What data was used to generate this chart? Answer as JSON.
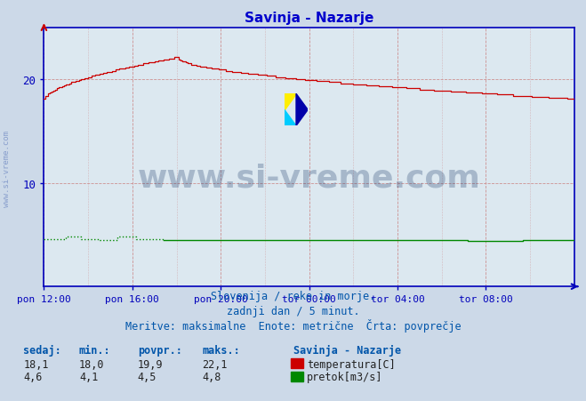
{
  "title": "Savinja - Nazarje",
  "title_color": "#0000cc",
  "bg_color": "#ccd9e8",
  "plot_bg_color": "#dce8f0",
  "axis_color": "#0000bb",
  "tick_color": "#0000bb",
  "ylim": [
    0,
    25.0
  ],
  "yticks": [
    10,
    20
  ],
  "xlabel_labels": [
    "pon 12:00",
    "pon 16:00",
    "pon 20:00",
    "tor 00:00",
    "tor 04:00",
    "tor 08:00"
  ],
  "xtick_positions": [
    0,
    48,
    96,
    144,
    192,
    240
  ],
  "n_points": 289,
  "temp_color": "#cc0000",
  "flow_color": "#008800",
  "watermark_text": "www.si-vreme.com",
  "watermark_color": "#1a3a6a",
  "watermark_alpha": 0.28,
  "watermark_fontsize": 26,
  "sub_text1": "Slovenija / reke in morje.",
  "sub_text2": "zadnji dan / 5 minut.",
  "sub_text3": "Meritve: maksimalne  Enote: metrične  Črta: povprečje",
  "sub_color": "#0055aa",
  "sub_fontsize": 8.5,
  "legend_title": "Savinja - Nazarje",
  "stat_headers": [
    "sedaj:",
    "min.:",
    "povpr.:",
    "maks.:"
  ],
  "stat_temp": [
    "18,1",
    "18,0",
    "19,9",
    "22,1"
  ],
  "stat_flow": [
    "4,6",
    "4,1",
    "4,5",
    "4,8"
  ],
  "legend_items": [
    "temperatura[C]",
    "pretok[m3/s]"
  ],
  "legend_colors": [
    "#cc0000",
    "#008800"
  ]
}
